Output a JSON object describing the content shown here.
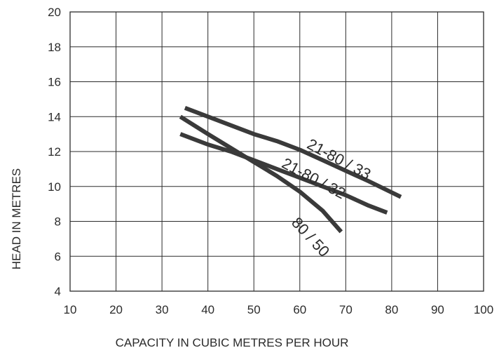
{
  "chart_data": {
    "type": "line",
    "xlabel": "CAPACITY IN CUBIC METRES PER HOUR",
    "ylabel": "HEAD IN METRES",
    "xlim": [
      10,
      100
    ],
    "ylim": [
      4,
      20
    ],
    "xticks": [
      10,
      20,
      30,
      40,
      50,
      60,
      70,
      80,
      90,
      100
    ],
    "yticks": [
      4,
      6,
      8,
      10,
      12,
      14,
      16,
      18,
      20
    ],
    "grid": true,
    "legend": "none",
    "series": [
      {
        "name": "21-80 / 33",
        "x": [
          35,
          42,
          50,
          55,
          60,
          65,
          70,
          75,
          82
        ],
        "y": [
          14.5,
          13.8,
          13.0,
          12.6,
          12.1,
          11.5,
          10.9,
          10.3,
          9.4
        ],
        "label_x": 68,
        "label_y": 11.3,
        "label_angle": 28
      },
      {
        "name": "21-80 / 32",
        "x": [
          34,
          40,
          45,
          50,
          55,
          60,
          65,
          70,
          75,
          79
        ],
        "y": [
          13.0,
          12.4,
          12.0,
          11.5,
          11.0,
          10.5,
          10.0,
          9.5,
          8.9,
          8.5
        ],
        "label_x": 62.5,
        "label_y": 10.2,
        "label_angle": 28
      },
      {
        "name": "80 / 50",
        "x": [
          34,
          40,
          45,
          50,
          55,
          60,
          65,
          69
        ],
        "y": [
          14.0,
          13.0,
          12.2,
          11.4,
          10.6,
          9.7,
          8.6,
          7.4
        ],
        "label_x": 61.5,
        "label_y": 6.9,
        "label_angle": 47
      }
    ],
    "line_color": "#3a3a3a",
    "grid_color": "#2b2b2b"
  }
}
